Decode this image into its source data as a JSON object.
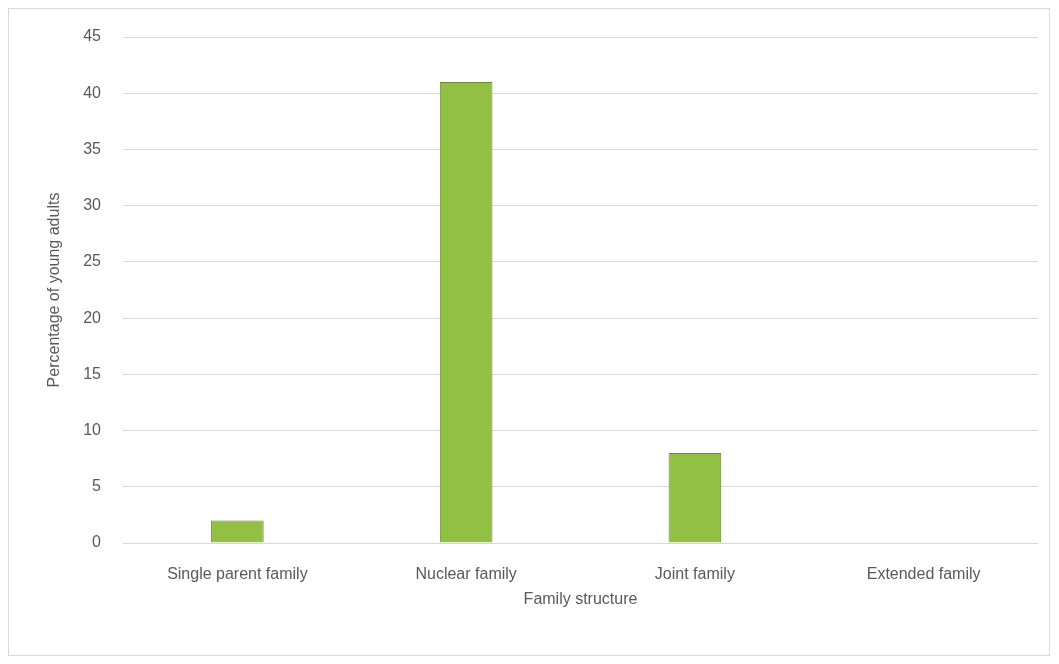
{
  "chart_data": {
    "type": "bar",
    "xlabel": "Family structure",
    "ylabel": "Percentage of young adults",
    "categories": [
      "Single parent family",
      "Nuclear family",
      "Joint family",
      "Extended family"
    ],
    "values": [
      2,
      41,
      8,
      0
    ],
    "color": "#92c045",
    "ylim": [
      0,
      45
    ],
    "yticks": [
      0,
      5,
      10,
      15,
      20,
      25,
      30,
      35,
      40,
      45
    ],
    "grid": "y"
  }
}
